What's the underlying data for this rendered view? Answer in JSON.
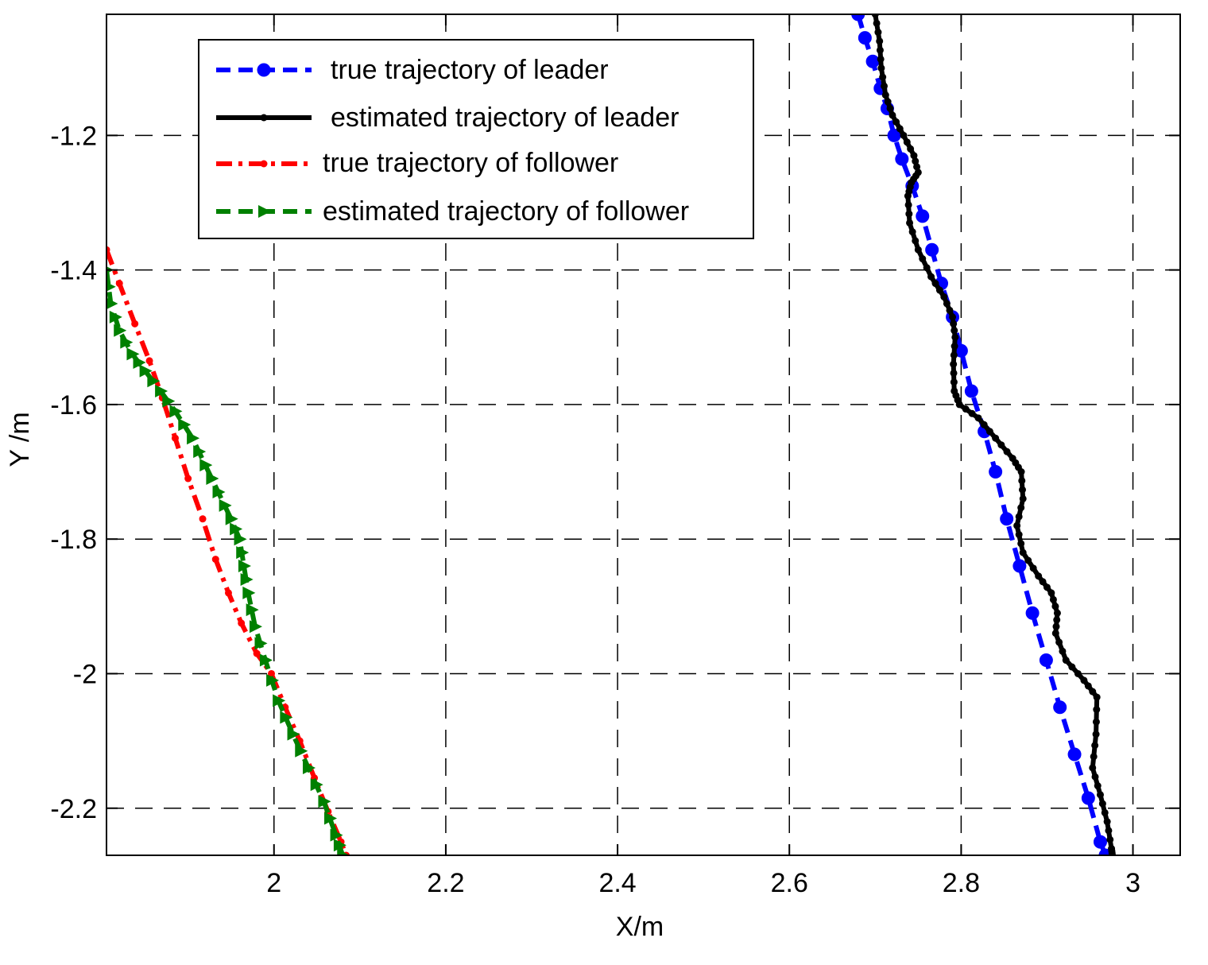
{
  "chart_data": {
    "type": "line",
    "title": "",
    "xlabel": "X/m",
    "ylabel": "Y /m",
    "xlim": [
      1.805,
      3.055
    ],
    "ylim": [
      -2.27,
      -1.02
    ],
    "xticks": [
      2,
      2.2,
      2.4,
      2.6,
      2.8,
      3
    ],
    "xtick_labels": [
      "2",
      "2.2",
      "2.4",
      "2.6",
      "2.8",
      "3"
    ],
    "yticks": [
      -1.2,
      -1.4,
      -1.6,
      -1.8,
      -2,
      -2.2
    ],
    "ytick_labels": [
      "-1.2",
      "-1.4",
      "-1.6",
      "-1.8",
      "-2",
      "-2.2"
    ],
    "grid": true,
    "legend_position": "top-left",
    "series": [
      {
        "name": "true trajectory of leader",
        "color": "#0000ff",
        "line_style": "dashed",
        "marker": "circle",
        "points": [
          [
            2.68,
            -1.02
          ],
          [
            2.688,
            -1.055
          ],
          [
            2.697,
            -1.09
          ],
          [
            2.706,
            -1.13
          ],
          [
            2.714,
            -1.16
          ],
          [
            2.722,
            -1.2
          ],
          [
            2.731,
            -1.235
          ],
          [
            2.743,
            -1.275
          ],
          [
            2.755,
            -1.32
          ],
          [
            2.766,
            -1.37
          ],
          [
            2.777,
            -1.42
          ],
          [
            2.79,
            -1.47
          ],
          [
            2.8,
            -1.52
          ],
          [
            2.812,
            -1.58
          ],
          [
            2.827,
            -1.64
          ],
          [
            2.84,
            -1.7
          ],
          [
            2.853,
            -1.77
          ],
          [
            2.868,
            -1.84
          ],
          [
            2.883,
            -1.91
          ],
          [
            2.899,
            -1.98
          ],
          [
            2.915,
            -2.05
          ],
          [
            2.932,
            -2.12
          ],
          [
            2.948,
            -2.185
          ],
          [
            2.962,
            -2.25
          ],
          [
            2.968,
            -2.27
          ]
        ]
      },
      {
        "name": "estimated trajectory of leader",
        "color": "#000000",
        "line_style": "solid",
        "marker": "point",
        "points": [
          [
            2.7,
            -1.02
          ],
          [
            2.705,
            -1.06
          ],
          [
            2.707,
            -1.1
          ],
          [
            2.712,
            -1.14
          ],
          [
            2.72,
            -1.17
          ],
          [
            2.733,
            -1.2
          ],
          [
            2.745,
            -1.23
          ],
          [
            2.75,
            -1.255
          ],
          [
            2.742,
            -1.27
          ],
          [
            2.738,
            -1.29
          ],
          [
            2.74,
            -1.33
          ],
          [
            2.75,
            -1.37
          ],
          [
            2.765,
            -1.41
          ],
          [
            2.78,
            -1.44
          ],
          [
            2.79,
            -1.47
          ],
          [
            2.793,
            -1.5
          ],
          [
            2.791,
            -1.54
          ],
          [
            2.792,
            -1.58
          ],
          [
            2.798,
            -1.6
          ],
          [
            2.82,
            -1.62
          ],
          [
            2.84,
            -1.65
          ],
          [
            2.86,
            -1.68
          ],
          [
            2.87,
            -1.7
          ],
          [
            2.872,
            -1.74
          ],
          [
            2.865,
            -1.78
          ],
          [
            2.872,
            -1.82
          ],
          [
            2.89,
            -1.855
          ],
          [
            2.905,
            -1.88
          ],
          [
            2.912,
            -1.91
          ],
          [
            2.91,
            -1.94
          ],
          [
            2.922,
            -1.98
          ],
          [
            2.943,
            -2.01
          ],
          [
            2.958,
            -2.035
          ],
          [
            2.957,
            -2.09
          ],
          [
            2.953,
            -2.14
          ],
          [
            2.962,
            -2.18
          ],
          [
            2.97,
            -2.22
          ],
          [
            2.975,
            -2.26
          ],
          [
            2.976,
            -2.27
          ]
        ]
      },
      {
        "name": "true trajectory of follower",
        "color": "#ff0000",
        "line_style": "dashdot",
        "marker": "point",
        "points": [
          [
            1.805,
            -1.37
          ],
          [
            1.82,
            -1.42
          ],
          [
            1.838,
            -1.48
          ],
          [
            1.855,
            -1.535
          ],
          [
            1.87,
            -1.59
          ],
          [
            1.885,
            -1.65
          ],
          [
            1.9,
            -1.71
          ],
          [
            1.917,
            -1.77
          ],
          [
            1.932,
            -1.83
          ],
          [
            1.947,
            -1.88
          ],
          [
            1.962,
            -1.925
          ],
          [
            1.98,
            -1.97
          ],
          [
            1.997,
            -2.0
          ],
          [
            2.013,
            -2.05
          ],
          [
            2.03,
            -2.1
          ],
          [
            2.047,
            -2.155
          ],
          [
            2.063,
            -2.205
          ],
          [
            2.078,
            -2.25
          ],
          [
            2.084,
            -2.27
          ]
        ]
      },
      {
        "name": "estimated trajectory of follower",
        "color": "#008000",
        "line_style": "dashed",
        "marker": "triangle-right",
        "points": [
          [
            1.805,
            -1.4
          ],
          [
            1.81,
            -1.45
          ],
          [
            1.82,
            -1.49
          ],
          [
            1.835,
            -1.525
          ],
          [
            1.85,
            -1.55
          ],
          [
            1.868,
            -1.58
          ],
          [
            1.885,
            -1.61
          ],
          [
            1.905,
            -1.65
          ],
          [
            1.92,
            -1.69
          ],
          [
            1.935,
            -1.73
          ],
          [
            1.95,
            -1.77
          ],
          [
            1.96,
            -1.8
          ],
          [
            1.965,
            -1.84
          ],
          [
            1.97,
            -1.88
          ],
          [
            1.978,
            -1.93
          ],
          [
            1.99,
            -1.98
          ],
          [
            2.005,
            -2.04
          ],
          [
            2.022,
            -2.09
          ],
          [
            2.04,
            -2.14
          ],
          [
            2.058,
            -2.19
          ],
          [
            2.072,
            -2.24
          ],
          [
            2.08,
            -2.27
          ]
        ]
      }
    ]
  }
}
